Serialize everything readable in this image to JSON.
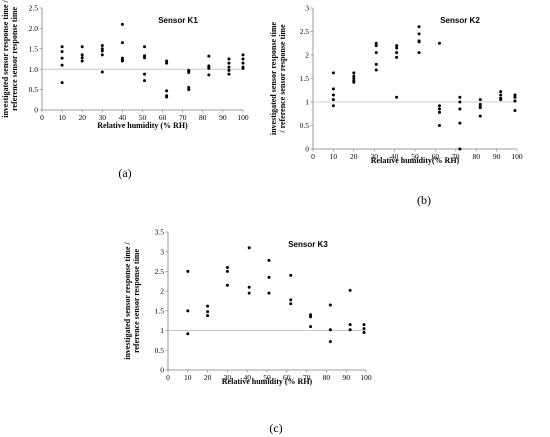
{
  "chart_data": [
    {
      "type": "scatter",
      "title": "Sensor K1",
      "xlabel": "Relative humidity (% RH)",
      "ylabel": [
        "investigated sensor response time /",
        "reference sensor response time"
      ],
      "panel_label": "(a)",
      "xlim": [
        0,
        100
      ],
      "ylim": [
        0,
        2.5
      ],
      "xticks": [
        "0",
        "10",
        "20",
        "30",
        "40",
        "50",
        "60",
        "70",
        "80",
        "90",
        "100"
      ],
      "yticks": [
        "0",
        "0.5",
        "1.0",
        "1.5",
        "2.0",
        "2.5"
      ],
      "reference_line": 1.0,
      "grid": false,
      "points": [
        [
          10,
          1.55
        ],
        [
          10,
          1.43
        ],
        [
          10,
          1.27
        ],
        [
          10,
          1.1
        ],
        [
          10,
          0.67
        ],
        [
          20,
          1.55
        ],
        [
          20,
          1.35
        ],
        [
          20,
          1.28
        ],
        [
          20,
          1.2
        ],
        [
          30,
          1.58
        ],
        [
          30,
          1.5
        ],
        [
          30,
          1.45
        ],
        [
          30,
          1.35
        ],
        [
          30,
          0.93
        ],
        [
          40,
          2.1
        ],
        [
          40,
          1.65
        ],
        [
          40,
          1.27
        ],
        [
          40,
          1.23
        ],
        [
          40,
          1.2
        ],
        [
          51,
          1.55
        ],
        [
          51,
          1.33
        ],
        [
          51,
          1.28
        ],
        [
          51,
          0.88
        ],
        [
          51,
          0.72
        ],
        [
          62,
          1.2
        ],
        [
          62,
          1.15
        ],
        [
          62,
          0.47
        ],
        [
          62,
          0.35
        ],
        [
          62,
          0.32
        ],
        [
          73,
          0.97
        ],
        [
          73,
          0.95
        ],
        [
          73,
          0.92
        ],
        [
          73,
          0.55
        ],
        [
          73,
          0.5
        ],
        [
          83,
          1.32
        ],
        [
          83,
          1.08
        ],
        [
          83,
          1.05
        ],
        [
          83,
          1.02
        ],
        [
          83,
          0.86
        ],
        [
          93,
          1.25
        ],
        [
          93,
          1.15
        ],
        [
          93,
          1.05
        ],
        [
          93,
          0.97
        ],
        [
          93,
          0.88
        ],
        [
          100,
          1.35
        ],
        [
          100,
          1.25
        ],
        [
          100,
          1.15
        ],
        [
          100,
          1.05
        ],
        [
          100,
          1.02
        ]
      ]
    },
    {
      "type": "scatter",
      "title": "Sensor K2",
      "xlabel": "Relative humidity(% RH)",
      "ylabel": [
        "investigated sensor response time",
        "/ reference sensor response time"
      ],
      "panel_label": "(b)",
      "xlim": [
        0,
        100
      ],
      "ylim": [
        0,
        3
      ],
      "xticks": [
        "0",
        "10",
        "20",
        "30",
        "40",
        "50",
        "60",
        "70",
        "80",
        "90",
        "100"
      ],
      "yticks": [
        "0",
        "0.5",
        "1",
        "1.5",
        "2",
        "2.5",
        "3"
      ],
      "reference_line": 1.0,
      "grid": false,
      "points": [
        [
          10,
          1.62
        ],
        [
          10,
          1.28
        ],
        [
          10,
          1.15
        ],
        [
          10,
          1.05
        ],
        [
          10,
          0.92
        ],
        [
          20,
          1.62
        ],
        [
          20,
          1.55
        ],
        [
          20,
          1.5
        ],
        [
          20,
          1.45
        ],
        [
          20,
          1.42
        ],
        [
          31,
          2.25
        ],
        [
          31,
          2.2
        ],
        [
          31,
          2.05
        ],
        [
          31,
          1.8
        ],
        [
          31,
          1.68
        ],
        [
          41,
          2.2
        ],
        [
          41,
          2.15
        ],
        [
          41,
          2.05
        ],
        [
          41,
          1.95
        ],
        [
          41,
          1.1
        ],
        [
          52,
          2.6
        ],
        [
          52,
          2.45
        ],
        [
          52,
          2.3
        ],
        [
          52,
          2.28
        ],
        [
          52,
          2.05
        ],
        [
          62,
          2.25
        ],
        [
          62,
          0.92
        ],
        [
          62,
          0.85
        ],
        [
          62,
          0.78
        ],
        [
          62,
          0.5
        ],
        [
          72,
          1.1
        ],
        [
          72,
          1.0
        ],
        [
          72,
          0.85
        ],
        [
          72,
          0.55
        ],
        [
          72,
          0.0
        ],
        [
          82,
          1.05
        ],
        [
          82,
          0.95
        ],
        [
          82,
          0.9
        ],
        [
          82,
          0.88
        ],
        [
          82,
          0.7
        ],
        [
          92,
          1.22
        ],
        [
          92,
          1.15
        ],
        [
          92,
          1.08
        ],
        [
          92,
          1.05
        ],
        [
          99,
          1.15
        ],
        [
          99,
          1.1
        ],
        [
          99,
          1.02
        ],
        [
          99,
          0.82
        ]
      ]
    },
    {
      "type": "scatter",
      "title": "Sensor K3",
      "xlabel": "Relative humidity (% RH)",
      "ylabel": [
        "investigated sensor response time /",
        "reference sensor response time"
      ],
      "panel_label": "(c)",
      "xlim": [
        0,
        100
      ],
      "ylim": [
        0,
        3.5
      ],
      "xticks": [
        "0",
        "10",
        "20",
        "30",
        "40",
        "50",
        "60",
        "70",
        "80",
        "90",
        "100"
      ],
      "yticks": [
        "0",
        "0.5",
        "1",
        "1.5",
        "2",
        "2.5",
        "3",
        "3.5"
      ],
      "reference_line": 1.0,
      "grid": false,
      "points": [
        [
          10,
          2.5
        ],
        [
          10,
          1.5
        ],
        [
          10,
          0.92
        ],
        [
          20,
          1.62
        ],
        [
          20,
          1.48
        ],
        [
          20,
          1.38
        ],
        [
          30,
          2.6
        ],
        [
          30,
          2.5
        ],
        [
          30,
          2.15
        ],
        [
          41,
          3.1
        ],
        [
          41,
          2.1
        ],
        [
          41,
          1.95
        ],
        [
          51,
          2.78
        ],
        [
          51,
          2.35
        ],
        [
          51,
          1.95
        ],
        [
          62,
          2.4
        ],
        [
          62,
          1.78
        ],
        [
          62,
          1.68
        ],
        [
          72,
          1.4
        ],
        [
          72,
          1.35
        ],
        [
          72,
          1.1
        ],
        [
          82,
          1.65
        ],
        [
          82,
          1.02
        ],
        [
          82,
          0.72
        ],
        [
          92,
          2.02
        ],
        [
          92,
          1.15
        ],
        [
          92,
          1.02
        ],
        [
          99,
          1.15
        ],
        [
          99,
          1.05
        ],
        [
          99,
          0.95
        ]
      ]
    }
  ]
}
